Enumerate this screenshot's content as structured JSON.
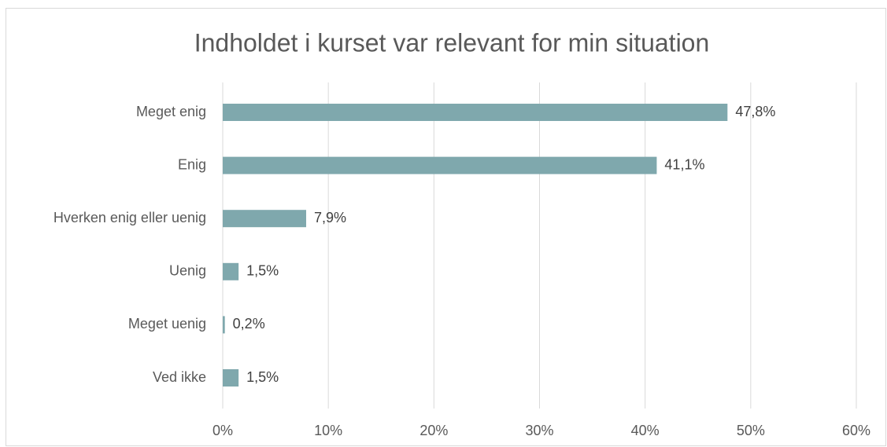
{
  "chart_data": {
    "type": "barh",
    "title": "Indholdet i kurset var relevant for min situation",
    "categories": [
      "Meget enig",
      "Enig",
      "Hverken enig eller uenig",
      "Uenig",
      "Meget uenig",
      "Ved ikke"
    ],
    "values": [
      47.8,
      41.1,
      7.9,
      1.5,
      0.2,
      1.5
    ],
    "value_labels": [
      "47,8%",
      "41,1%",
      "7,9%",
      "1,5%",
      "0,2%",
      "1,5%"
    ],
    "color": "#7fa8ad",
    "xlim": [
      0,
      60
    ],
    "xticks": [
      {
        "value": 0,
        "label": "0%"
      },
      {
        "value": 10,
        "label": "10%"
      },
      {
        "value": 20,
        "label": "20%"
      },
      {
        "value": 30,
        "label": "30%"
      },
      {
        "value": 40,
        "label": "40%"
      },
      {
        "value": 50,
        "label": "50%"
      },
      {
        "value": 60,
        "label": "60%"
      }
    ],
    "grid": true
  }
}
